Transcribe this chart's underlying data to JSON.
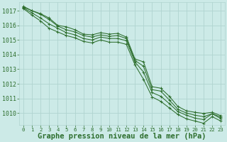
{
  "background_color": "#cceae7",
  "grid_color": "#b0d4d0",
  "line_color": "#2d6e2d",
  "xlabel": "Graphe pression niveau de la mer (hPa)",
  "xlabel_fontsize": 7.5,
  "tick_fontsize": 6,
  "xlim": [
    -0.5,
    23.5
  ],
  "ylim": [
    1009.2,
    1017.6
  ],
  "yticks": [
    1010,
    1011,
    1012,
    1013,
    1014,
    1015,
    1016,
    1017
  ],
  "xticks": [
    0,
    1,
    2,
    3,
    4,
    5,
    6,
    7,
    8,
    9,
    10,
    11,
    12,
    13,
    14,
    15,
    16,
    17,
    18,
    19,
    20,
    21,
    22,
    23
  ],
  "series": [
    [
      1017.3,
      1017.0,
      1016.8,
      1016.5,
      1016.0,
      1015.9,
      1015.7,
      1015.4,
      1015.35,
      1015.5,
      1015.4,
      1015.45,
      1015.2,
      1013.7,
      1013.5,
      1011.8,
      1011.7,
      1011.15,
      1010.45,
      1010.15,
      1010.05,
      1009.97,
      1010.05,
      1009.82
    ],
    [
      1017.25,
      1017.0,
      1016.75,
      1016.4,
      1015.95,
      1015.7,
      1015.55,
      1015.3,
      1015.2,
      1015.35,
      1015.25,
      1015.3,
      1015.1,
      1013.6,
      1013.2,
      1011.6,
      1011.5,
      1010.9,
      1010.25,
      1010.0,
      1009.85,
      1009.75,
      1009.95,
      1009.73
    ],
    [
      1017.2,
      1016.85,
      1016.5,
      1016.1,
      1015.8,
      1015.5,
      1015.35,
      1015.1,
      1015.0,
      1015.2,
      1015.1,
      1015.1,
      1014.95,
      1013.5,
      1012.8,
      1011.4,
      1011.15,
      1010.65,
      1010.1,
      1009.85,
      1009.65,
      1009.55,
      1009.95,
      1009.62
    ],
    [
      1017.15,
      1016.7,
      1016.3,
      1015.8,
      1015.55,
      1015.3,
      1015.15,
      1014.9,
      1014.8,
      1015.0,
      1014.85,
      1014.85,
      1014.7,
      1013.3,
      1012.3,
      1011.1,
      1010.8,
      1010.35,
      1009.9,
      1009.6,
      1009.45,
      1009.3,
      1009.75,
      1009.45
    ]
  ]
}
